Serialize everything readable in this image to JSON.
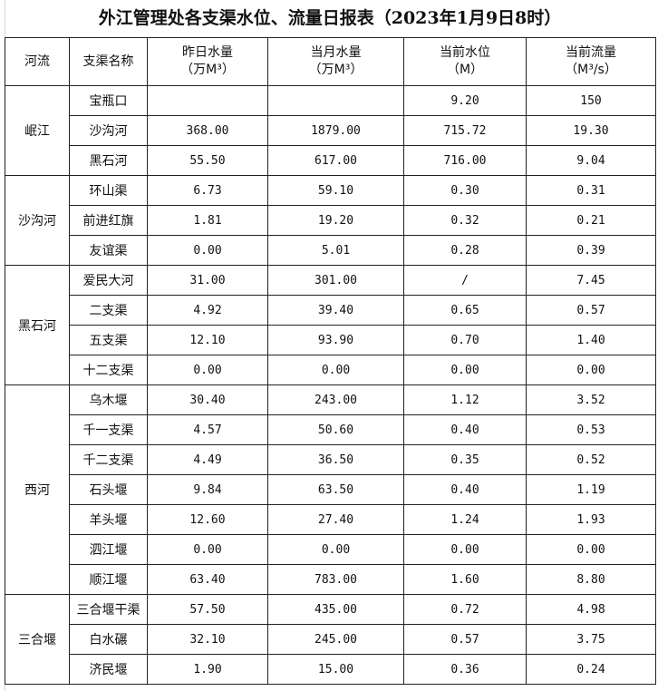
{
  "title": "外江管理处各支渠水位、流量日报表（2023年1月9日8时）",
  "headers": [
    {
      "l1": "河流",
      "l2": ""
    },
    {
      "l1": "支渠名称",
      "l2": ""
    },
    {
      "l1": "昨日水量",
      "l2": "（万M³）"
    },
    {
      "l1": "当月水量",
      "l2": "（万M³）"
    },
    {
      "l1": "当前水位",
      "l2": "（M）"
    },
    {
      "l1": "当前流量",
      "l2": "（M³/s）"
    }
  ],
  "groups": [
    {
      "river": "岷江",
      "rows": [
        [
          "宝瓶口",
          "",
          "",
          "9.20",
          "150"
        ],
        [
          "沙沟河",
          "368.00",
          "1879.00",
          "715.72",
          "19.30"
        ],
        [
          "黑石河",
          "55.50",
          "617.00",
          "716.00",
          "9.04"
        ]
      ]
    },
    {
      "river": "沙沟河",
      "rows": [
        [
          "环山渠",
          "6.73",
          "59.10",
          "0.30",
          "0.31"
        ],
        [
          "前进红旗",
          "1.81",
          "19.20",
          "0.32",
          "0.21"
        ],
        [
          "友谊渠",
          "0.00",
          "5.01",
          "0.28",
          "0.39"
        ]
      ]
    },
    {
      "river": "黑石河",
      "rows": [
        [
          "爱民大河",
          "31.00",
          "301.00",
          "/",
          "7.45"
        ],
        [
          "二支渠",
          "4.92",
          "39.40",
          "0.65",
          "0.57"
        ],
        [
          "五支渠",
          "12.10",
          "93.90",
          "0.70",
          "1.40"
        ],
        [
          "十二支渠",
          "0.00",
          "0.00",
          "0.00",
          "0.00"
        ]
      ]
    },
    {
      "river": "西河",
      "rows": [
        [
          "乌木堰",
          "30.40",
          "243.00",
          "1.12",
          "3.52"
        ],
        [
          "千一支渠",
          "4.57",
          "50.60",
          "0.40",
          "0.53"
        ],
        [
          "千二支渠",
          "4.49",
          "36.50",
          "0.35",
          "0.52"
        ],
        [
          "石头堰",
          "9.84",
          "63.50",
          "0.40",
          "1.19"
        ],
        [
          "羊头堰",
          "12.60",
          "27.40",
          "1.24",
          "1.93"
        ],
        [
          "泗江堰",
          "0.00",
          "0.00",
          "0.00",
          "0.00"
        ],
        [
          "顺江堰",
          "63.40",
          "783.00",
          "1.60",
          "8.80"
        ]
      ]
    },
    {
      "river": "三合堰",
      "rows": [
        [
          "三合堰干渠",
          "57.50",
          "435.00",
          "0.72",
          "4.98"
        ],
        [
          "白水碾",
          "32.10",
          "245.00",
          "0.57",
          "3.75"
        ],
        [
          "济民堰",
          "1.90",
          "15.00",
          "0.36",
          "0.24"
        ]
      ]
    }
  ]
}
